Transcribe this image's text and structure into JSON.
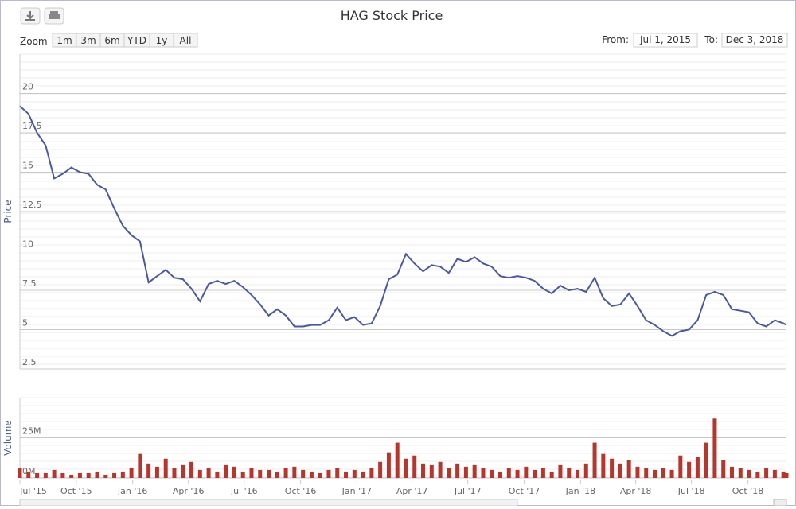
{
  "range_selector": {
    "zoom_label": "Zoom",
    "buttons": [
      "1m",
      "3m",
      "6m",
      "YTD",
      "1y",
      "All"
    ],
    "from_label": "From:",
    "from": "Jul 1, 2015",
    "to_label": "To:",
    "to": "Dec 3, 2018"
  },
  "chart_data": {
    "type": "stock",
    "title": "HAG Stock Price",
    "x": [
      "2015-07-01",
      "2015-07-15",
      "2015-07-29",
      "2015-08-12",
      "2015-08-26",
      "2015-09-09",
      "2015-09-23",
      "2015-10-07",
      "2015-10-21",
      "2015-11-04",
      "2015-11-18",
      "2015-12-02",
      "2015-12-16",
      "2015-12-30",
      "2016-01-13",
      "2016-01-27",
      "2016-02-10",
      "2016-02-24",
      "2016-03-09",
      "2016-03-23",
      "2016-04-06",
      "2016-04-20",
      "2016-05-04",
      "2016-05-18",
      "2016-06-01",
      "2016-06-15",
      "2016-06-29",
      "2016-07-13",
      "2016-07-27",
      "2016-08-10",
      "2016-08-24",
      "2016-09-07",
      "2016-09-21",
      "2016-10-05",
      "2016-10-19",
      "2016-11-02",
      "2016-11-16",
      "2016-11-30",
      "2016-12-14",
      "2016-12-28",
      "2017-01-11",
      "2017-01-25",
      "2017-02-08",
      "2017-02-22",
      "2017-03-08",
      "2017-03-22",
      "2017-04-05",
      "2017-04-19",
      "2017-05-03",
      "2017-05-17",
      "2017-05-31",
      "2017-06-14",
      "2017-06-28",
      "2017-07-12",
      "2017-07-26",
      "2017-08-09",
      "2017-08-23",
      "2017-09-06",
      "2017-09-20",
      "2017-10-04",
      "2017-10-18",
      "2017-11-01",
      "2017-11-15",
      "2017-11-29",
      "2017-12-13",
      "2017-12-27",
      "2018-01-10",
      "2018-01-24",
      "2018-02-07",
      "2018-02-21",
      "2018-03-07",
      "2018-03-21",
      "2018-04-04",
      "2018-04-18",
      "2018-05-02",
      "2018-05-16",
      "2018-05-30",
      "2018-06-13",
      "2018-06-27",
      "2018-07-11",
      "2018-07-25",
      "2018-08-08",
      "2018-08-22",
      "2018-09-05",
      "2018-09-19",
      "2018-10-03",
      "2018-10-17",
      "2018-10-31",
      "2018-11-14",
      "2018-11-28",
      "2018-12-03"
    ],
    "xlim": [
      "2015-07-01",
      "2018-12-03"
    ],
    "xticks": [
      {
        "value": "2015-07-01",
        "label": "Jul '15"
      },
      {
        "value": "2015-10-01",
        "label": "Oct '15"
      },
      {
        "value": "2016-01-01",
        "label": "Jan '16"
      },
      {
        "value": "2016-04-01",
        "label": "Apr '16"
      },
      {
        "value": "2016-07-01",
        "label": "Jul '16"
      },
      {
        "value": "2016-10-01",
        "label": "Oct '16"
      },
      {
        "value": "2017-01-01",
        "label": "Jan '17"
      },
      {
        "value": "2017-04-01",
        "label": "Apr '17"
      },
      {
        "value": "2017-07-01",
        "label": "Jul '17"
      },
      {
        "value": "2017-10-01",
        "label": "Oct '17"
      },
      {
        "value": "2018-01-01",
        "label": "Jan '18"
      },
      {
        "value": "2018-04-01",
        "label": "Apr '18"
      },
      {
        "value": "2018-07-01",
        "label": "Jul '18"
      },
      {
        "value": "2018-10-01",
        "label": "Oct '18"
      }
    ],
    "panes": [
      {
        "type": "line",
        "ylabel": "Price",
        "color": "#4b57a3",
        "ylim": [
          2.5,
          22.5
        ],
        "yticks": [
          2.5,
          5,
          7.5,
          10,
          12.5,
          15,
          17.5,
          20
        ],
        "values": [
          19.2,
          18.7,
          17.5,
          16.7,
          14.6,
          14.9,
          15.3,
          15.0,
          14.9,
          14.2,
          13.9,
          12.7,
          11.6,
          11.0,
          10.6,
          8.0,
          8.4,
          8.8,
          8.3,
          8.2,
          7.6,
          6.8,
          7.9,
          8.1,
          7.9,
          8.1,
          7.7,
          7.2,
          6.6,
          5.9,
          6.3,
          5.9,
          5.2,
          5.2,
          5.3,
          5.3,
          5.6,
          6.4,
          5.6,
          5.8,
          5.3,
          5.4,
          6.5,
          8.2,
          8.5,
          9.8,
          9.2,
          8.7,
          9.1,
          9.0,
          8.6,
          9.5,
          9.3,
          9.6,
          9.2,
          9.0,
          8.4,
          8.3,
          8.4,
          8.3,
          8.1,
          7.6,
          7.3,
          7.8,
          7.5,
          7.6,
          7.4,
          8.3,
          7.0,
          6.5,
          6.6,
          7.3,
          6.5,
          5.6,
          5.3,
          4.9,
          4.6,
          4.9,
          5.0,
          5.6,
          7.2,
          7.4,
          7.2,
          6.3,
          6.2,
          6.1,
          5.4,
          5.2,
          5.6,
          5.4,
          5.3
        ]
      },
      {
        "type": "bar",
        "ylabel": "Volume",
        "color": "#b8352c",
        "ylim": [
          0,
          50000000
        ],
        "yticks": [
          {
            "value": 0,
            "label": "0M"
          },
          {
            "value": 25000000,
            "label": "25M"
          }
        ],
        "values": [
          6000000,
          4000000,
          3000000,
          3000000,
          5000000,
          3000000,
          2000000,
          3000000,
          3000000,
          4000000,
          2000000,
          3000000,
          4000000,
          6000000,
          15000000,
          9000000,
          7000000,
          12000000,
          6000000,
          8000000,
          10000000,
          5000000,
          6000000,
          4000000,
          8000000,
          7000000,
          4000000,
          6000000,
          5000000,
          5000000,
          4000000,
          6000000,
          7000000,
          5000000,
          4000000,
          3000000,
          5000000,
          6000000,
          4000000,
          5000000,
          4000000,
          6000000,
          10000000,
          16000000,
          22000000,
          12000000,
          14000000,
          9000000,
          8000000,
          10000000,
          6000000,
          9000000,
          7000000,
          8000000,
          6000000,
          5000000,
          4000000,
          6000000,
          5000000,
          7000000,
          5000000,
          6000000,
          4000000,
          8000000,
          6000000,
          5000000,
          9000000,
          22000000,
          15000000,
          12000000,
          9000000,
          11000000,
          7000000,
          6000000,
          5000000,
          6000000,
          5000000,
          14000000,
          10000000,
          13000000,
          22000000,
          37000000,
          11000000,
          7000000,
          6000000,
          5000000,
          4000000,
          6000000,
          5000000,
          4000000,
          3000000
        ]
      }
    ]
  }
}
